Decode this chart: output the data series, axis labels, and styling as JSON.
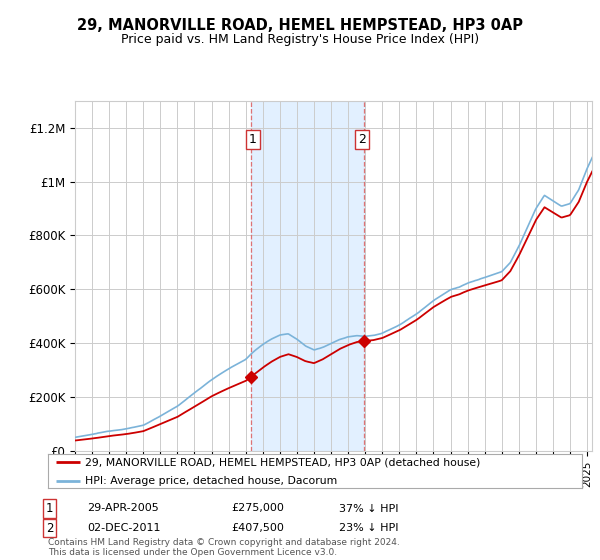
{
  "title": "29, MANORVILLE ROAD, HEMEL HEMPSTEAD, HP3 0AP",
  "subtitle": "Price paid vs. HM Land Registry's House Price Index (HPI)",
  "ylabel_ticks": [
    "£0",
    "£200K",
    "£400K",
    "£600K",
    "£800K",
    "£1M",
    "£1.2M"
  ],
  "ytick_values": [
    0,
    200000,
    400000,
    600000,
    800000,
    1000000,
    1200000
  ],
  "ylim": [
    0,
    1300000
  ],
  "xlim_start": 1995.0,
  "xlim_end": 2025.3,
  "hpi_color": "#7bb3d9",
  "price_color": "#cc0000",
  "transaction1": {
    "year": 2005.33,
    "price": 275000,
    "label": "1"
  },
  "transaction2": {
    "year": 2011.92,
    "price": 407500,
    "label": "2"
  },
  "shade_x1": 2005.33,
  "shade_x2": 2011.92,
  "legend_entries": [
    "29, MANORVILLE ROAD, HEMEL HEMPSTEAD, HP3 0AP (detached house)",
    "HPI: Average price, detached house, Dacorum"
  ],
  "table_rows": [
    {
      "num": "1",
      "date": "29-APR-2005",
      "price": "£275,000",
      "pct": "37% ↓ HPI"
    },
    {
      "num": "2",
      "date": "02-DEC-2011",
      "price": "£407,500",
      "pct": "23% ↓ HPI"
    }
  ],
  "footnote": "Contains HM Land Registry data © Crown copyright and database right 2024.\nThis data is licensed under the Open Government Licence v3.0.",
  "background_color": "#ffffff",
  "grid_color": "#cccccc",
  "shade_color": "#ddeeff"
}
